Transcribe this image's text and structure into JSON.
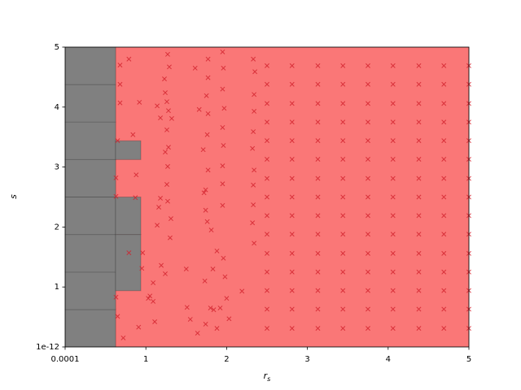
{
  "chart_data": {
    "type": "scatter",
    "xlabel": {
      "main": "r",
      "sub": "s"
    },
    "ylabel": "s",
    "xlim": [
      0.0001,
      5
    ],
    "ylim": [
      1e-12,
      5
    ],
    "xticks": [
      0.0001,
      1,
      2,
      3,
      4,
      5
    ],
    "yticks": [
      1e-12,
      1,
      2,
      3,
      4,
      5
    ],
    "regions": [
      {
        "x": [
          0.625,
          5
        ],
        "y": [
          1e-12,
          5
        ],
        "color": "#fa7777"
      },
      {
        "x": [
          0.0001,
          0.625
        ],
        "y": [
          1e-12,
          0.625
        ],
        "color": "#808080"
      },
      {
        "x": [
          0.0001,
          0.625
        ],
        "y": [
          0.625,
          1.25
        ],
        "color": "#808080"
      },
      {
        "x": [
          0.0001,
          0.625
        ],
        "y": [
          1.25,
          1.875
        ],
        "color": "#808080"
      },
      {
        "x": [
          0.0001,
          0.625
        ],
        "y": [
          1.875,
          2.5
        ],
        "color": "#808080"
      },
      {
        "x": [
          0.0001,
          0.625
        ],
        "y": [
          2.5,
          3.125
        ],
        "color": "#808080"
      },
      {
        "x": [
          0.0001,
          0.625
        ],
        "y": [
          3.125,
          3.75
        ],
        "color": "#808080"
      },
      {
        "x": [
          0.0001,
          0.625
        ],
        "y": [
          3.75,
          4.375
        ],
        "color": "#808080"
      },
      {
        "x": [
          0.0001,
          0.625
        ],
        "y": [
          4.375,
          5
        ],
        "color": "#808080"
      },
      {
        "x": [
          0.625,
          0.9375
        ],
        "y": [
          0.9375,
          1.875
        ],
        "color": "#808080"
      },
      {
        "x": [
          0.625,
          0.9375
        ],
        "y": [
          1.875,
          2.5
        ],
        "color": "#808080"
      },
      {
        "x": [
          0.625,
          0.9375
        ],
        "y": [
          3.125,
          3.4375
        ],
        "color": "#808080"
      }
    ],
    "series": [
      {
        "color": "#d11f2a",
        "x": [
          0.68,
          0.79,
          0.68,
          0.68,
          0.65,
          0.63,
          0.63,
          0.63,
          0.65,
          0.72,
          0.92,
          0.84,
          0.88,
          0.87,
          0.79,
          0.91,
          1.27,
          1.23,
          1.29,
          1.24,
          1.28,
          1.26,
          1.32,
          1.26,
          1.24,
          1.28,
          1.27,
          1.26,
          1.27,
          1.31,
          1.3,
          1.19,
          1.24,
          1.09,
          1.05,
          1.09,
          1.14,
          1.16,
          1.18,
          1.11,
          1.03,
          0.95,
          0.96,
          1.14,
          1.18,
          1.61,
          1.77,
          1.77,
          1.95,
          1.96,
          1.75,
          1.66,
          1.95,
          1.97,
          1.77,
          1.76,
          1.71,
          1.95,
          1.96,
          1.77,
          1.74,
          1.95,
          1.95,
          1.72,
          1.74,
          1.95,
          1.76,
          1.81,
          1.88,
          1.83,
          1.96,
          1.73,
          1.98,
          1.92,
          1.8,
          1.84,
          1.74,
          1.64,
          1.55,
          1.51,
          1.5,
          2.0,
          1.88,
          2.03,
          2.19,
          2.33,
          2.35,
          2.34,
          2.34,
          2.33,
          2.32,
          2.34,
          2.33,
          2.33,
          2.32,
          2.34
        ],
        "values": [
          4.7,
          4.8,
          4.38,
          4.07,
          3.44,
          2.82,
          2.51,
          0.83,
          0.51,
          0.15,
          4.08,
          3.54,
          2.87,
          2.49,
          1.57,
          0.33,
          4.88,
          4.47,
          4.67,
          4.24,
          3.94,
          4.09,
          3.81,
          3.62,
          3.25,
          3.33,
          3.01,
          2.71,
          2.43,
          2.14,
          1.82,
          1.36,
          1.22,
          1.07,
          0.85,
          0.76,
          2.03,
          2.33,
          2.48,
          0.42,
          0.81,
          1.31,
          1.57,
          4.02,
          3.82,
          4.65,
          4.8,
          4.49,
          4.92,
          4.65,
          4.19,
          3.96,
          4.3,
          3.98,
          3.89,
          3.54,
          3.29,
          3.66,
          3.36,
          2.95,
          2.62,
          3.02,
          2.72,
          2.57,
          2.28,
          2.36,
          2.09,
          1.95,
          1.6,
          1.3,
          1.48,
          1.1,
          1.17,
          0.65,
          0.65,
          0.62,
          0.38,
          0.23,
          0.46,
          0.66,
          1.3,
          0.81,
          0.31,
          0.47,
          0.93,
          4.8,
          4.59,
          4.21,
          3.93,
          3.59,
          3.31,
          2.95,
          2.7,
          2.37,
          2.07,
          1.73
        ]
      },
      {
        "color": "#d11f2a",
        "x": [
          2.5,
          2.5,
          2.5,
          2.5,
          2.5,
          2.5,
          2.5,
          2.5,
          2.5,
          2.5,
          2.5,
          2.5,
          2.5,
          2.5,
          2.5,
          2.81,
          2.81,
          2.81,
          2.81,
          2.81,
          2.81,
          2.81,
          2.81,
          2.81,
          2.81,
          2.81,
          2.81,
          2.81,
          2.81,
          2.81,
          3.13,
          3.13,
          3.13,
          3.13,
          3.13,
          3.13,
          3.13,
          3.13,
          3.13,
          3.13,
          3.13,
          3.13,
          3.13,
          3.13,
          3.13,
          3.44,
          3.44,
          3.44,
          3.44,
          3.44,
          3.44,
          3.44,
          3.44,
          3.44,
          3.44,
          3.44,
          3.44,
          3.44,
          3.44,
          3.44,
          3.75,
          3.75,
          3.75,
          3.75,
          3.75,
          3.75,
          3.75,
          3.75,
          3.75,
          3.75,
          3.75,
          3.75,
          3.75,
          3.75,
          3.75,
          4.06,
          4.06,
          4.06,
          4.06,
          4.06,
          4.06,
          4.06,
          4.06,
          4.06,
          4.06,
          4.06,
          4.06,
          4.06,
          4.06,
          4.06,
          4.38,
          4.38,
          4.38,
          4.38,
          4.38,
          4.38,
          4.38,
          4.38,
          4.38,
          4.38,
          4.38,
          4.38,
          4.38,
          4.38,
          4.38,
          4.69,
          4.69,
          4.69,
          4.69,
          4.69,
          4.69,
          4.69,
          4.69,
          4.69,
          4.69,
          4.69,
          4.69,
          4.69,
          4.69,
          4.69,
          5,
          5,
          5,
          5,
          5,
          5,
          5,
          5,
          5,
          5,
          5,
          5,
          5,
          5,
          5
        ],
        "values": [
          4.69,
          4.38,
          4.06,
          3.75,
          3.44,
          3.13,
          2.81,
          2.5,
          2.19,
          1.88,
          1.56,
          1.25,
          0.94,
          0.63,
          0.31,
          4.69,
          4.38,
          4.06,
          3.75,
          3.44,
          3.13,
          2.81,
          2.5,
          2.19,
          1.88,
          1.56,
          1.25,
          0.94,
          0.63,
          0.31,
          4.69,
          4.38,
          4.06,
          3.75,
          3.44,
          3.13,
          2.81,
          2.5,
          2.19,
          1.88,
          1.56,
          1.25,
          0.94,
          0.63,
          0.31,
          4.69,
          4.38,
          4.06,
          3.75,
          3.44,
          3.13,
          2.81,
          2.5,
          2.19,
          1.88,
          1.56,
          1.25,
          0.94,
          0.63,
          0.31,
          4.69,
          4.38,
          4.06,
          3.75,
          3.44,
          3.13,
          2.81,
          2.5,
          2.19,
          1.88,
          1.56,
          1.25,
          0.94,
          0.63,
          0.31,
          4.69,
          4.38,
          4.06,
          3.75,
          3.44,
          3.13,
          2.81,
          2.5,
          2.19,
          1.88,
          1.56,
          1.25,
          0.94,
          0.63,
          0.31,
          4.69,
          4.38,
          4.06,
          3.75,
          3.44,
          3.13,
          2.81,
          2.5,
          2.19,
          1.88,
          1.56,
          1.25,
          0.94,
          0.63,
          0.31,
          4.69,
          4.38,
          4.06,
          3.75,
          3.44,
          3.13,
          2.81,
          2.5,
          2.19,
          1.88,
          1.56,
          1.25,
          0.94,
          0.63,
          0.31,
          4.69,
          4.38,
          4.06,
          3.75,
          3.44,
          3.13,
          2.81,
          2.5,
          2.19,
          1.88,
          1.56,
          1.25,
          0.94,
          0.63,
          0.31
        ]
      }
    ]
  }
}
